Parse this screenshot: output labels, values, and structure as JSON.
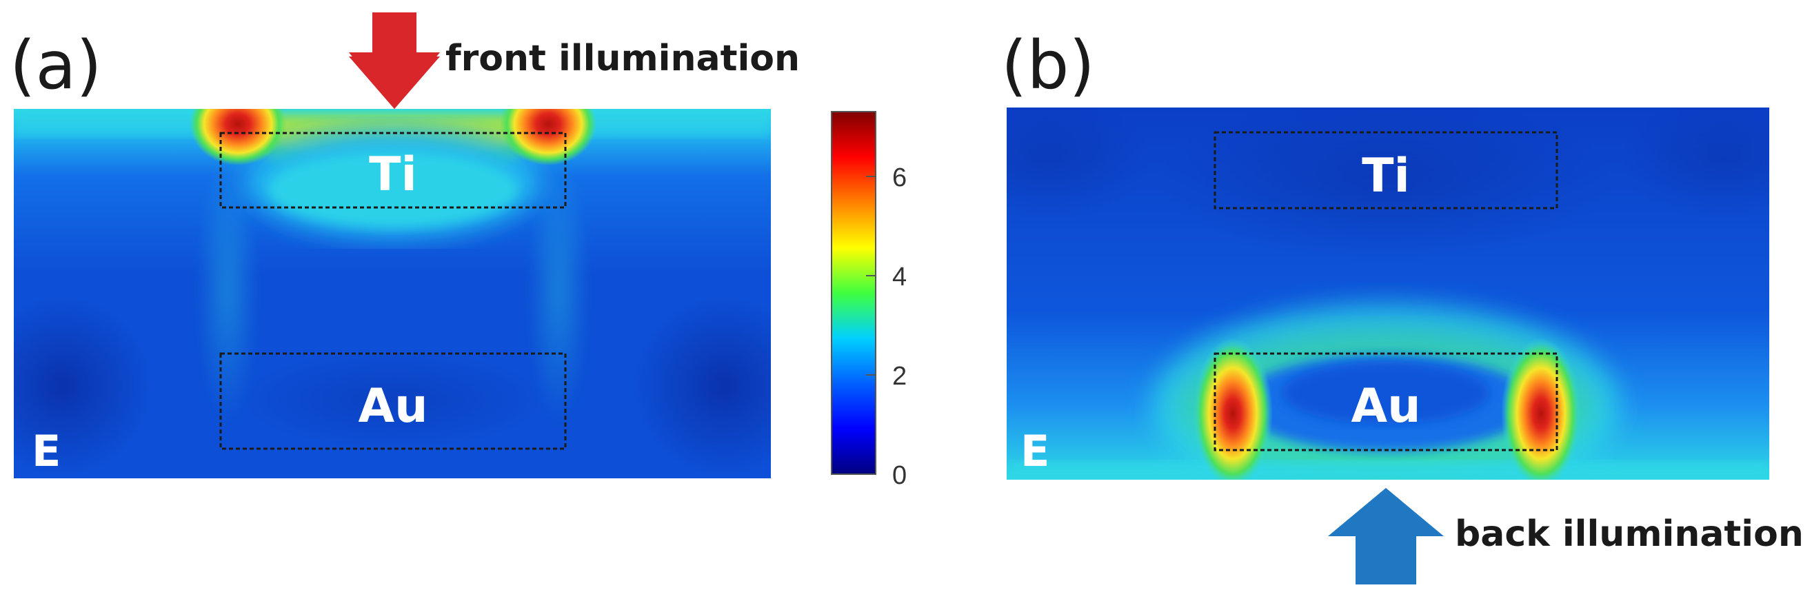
{
  "panel_a": {
    "letter": "(a)",
    "arrow_label": "front illumination",
    "arrow_color": "#d9262a",
    "top_material": "Ti",
    "bottom_material": "Au",
    "field_symbol": "E"
  },
  "panel_b": {
    "letter": "(b)",
    "arrow_label": "back illumination",
    "arrow_color": "#1f78c1",
    "top_material": "Ti",
    "bottom_material": "Au",
    "field_symbol": "E"
  },
  "colorbar": {
    "ticks": [
      "0",
      "2",
      "4",
      "6"
    ],
    "range": [
      0,
      7.3
    ],
    "colormap": [
      "#00007f",
      "#0040ff",
      "#00c0ff",
      "#3fff3f",
      "#ffff00",
      "#ff8000",
      "#e81010",
      "#7f0000"
    ]
  },
  "colors": {
    "background_blue": "#0d4fd6",
    "deep_blue": "#0a2fa8",
    "cyan": "#2ed8e6",
    "green": "#4ee05a",
    "yellow": "#f5e62a",
    "orange": "#ff8a1e",
    "red": "#e0241b"
  }
}
